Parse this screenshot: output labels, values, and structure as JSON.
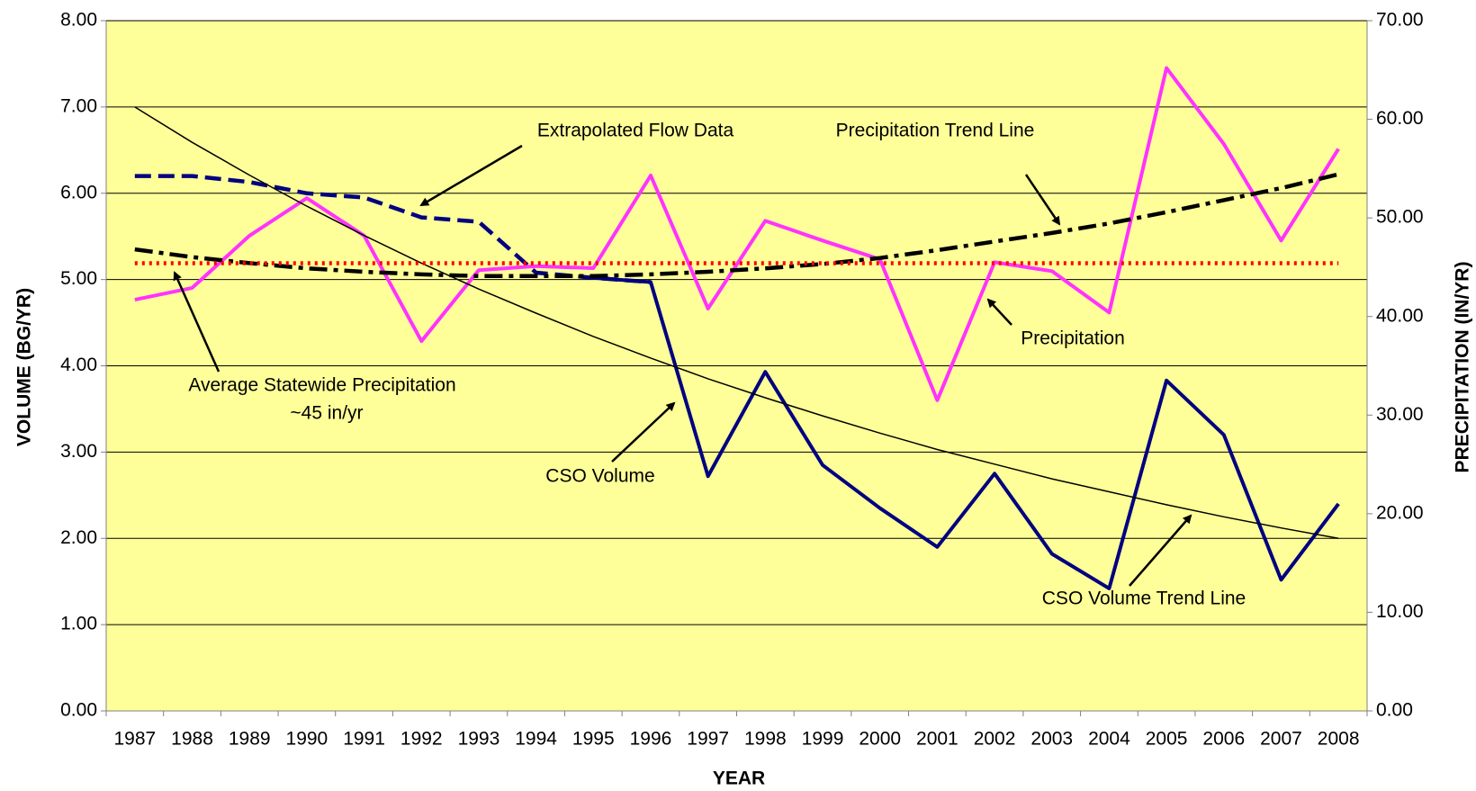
{
  "chart_data": {
    "type": "line",
    "x_label": "YEAR",
    "y_label": "VOLUME (BG/YR)",
    "y2_label": "PRECIPITATION (IN/YR)",
    "categories": [
      "1987",
      "1988",
      "1989",
      "1990",
      "1991",
      "1992",
      "1993",
      "1994",
      "1995",
      "1996",
      "1997",
      "1998",
      "1999",
      "2000",
      "2001",
      "2002",
      "2003",
      "2004",
      "2005",
      "2006",
      "2007",
      "2008"
    ],
    "ylim": [
      0,
      8
    ],
    "yticks": [
      {
        "value": 0,
        "label": "0.00"
      },
      {
        "value": 1,
        "label": "1.00"
      },
      {
        "value": 2,
        "label": "2.00"
      },
      {
        "value": 3,
        "label": "3.00"
      },
      {
        "value": 4,
        "label": "4.00"
      },
      {
        "value": 5,
        "label": "5.00"
      },
      {
        "value": 6,
        "label": "6.00"
      },
      {
        "value": 7,
        "label": "7.00"
      },
      {
        "value": 8,
        "label": "8.00"
      }
    ],
    "y2lim": [
      0,
      70
    ],
    "y2ticks": [
      {
        "value": 0,
        "label": "0.00"
      },
      {
        "value": 10,
        "label": "10.00"
      },
      {
        "value": 20,
        "label": "20.00"
      },
      {
        "value": 30,
        "label": "30.00"
      },
      {
        "value": 40,
        "label": "40.00"
      },
      {
        "value": 50,
        "label": "50.00"
      },
      {
        "value": 60,
        "label": "60.00"
      },
      {
        "value": 70,
        "label": "70.00"
      }
    ],
    "grid": true,
    "background": "#ffff99",
    "series": [
      {
        "color": "#000080",
        "line_style": "dashed",
        "values": [
          6.2,
          6.2,
          6.13,
          6.0,
          5.95,
          5.72,
          5.67,
          5.08,
          5.02,
          4.97,
          null,
          null,
          null,
          null,
          null,
          null,
          null,
          null,
          null,
          null,
          null,
          null
        ]
      },
      {
        "color": "#000080",
        "line_style": "solid",
        "values": [
          null,
          null,
          null,
          null,
          null,
          null,
          null,
          null,
          5.02,
          4.97,
          2.72,
          3.93,
          2.85,
          2.35,
          1.9,
          2.75,
          1.82,
          1.42,
          3.83,
          3.2,
          1.52,
          2.4
        ]
      },
      {
        "color": "#ff33ff",
        "line_style": "solid",
        "axis": "y2",
        "values": [
          41.7,
          42.9,
          48.2,
          52.0,
          48.2,
          37.5,
          44.7,
          45.1,
          44.9,
          54.3,
          40.8,
          49.7,
          47.7,
          45.8,
          31.5,
          45.5,
          44.6,
          40.4,
          65.2,
          57.5,
          47.7,
          57.0
        ]
      },
      {
        "color": "#000000",
        "line_style": "dash-dot",
        "values": [
          5.35,
          5.26,
          5.19,
          5.13,
          5.09,
          5.06,
          5.04,
          5.04,
          5.04,
          5.06,
          5.09,
          5.13,
          5.18,
          5.25,
          5.34,
          5.44,
          5.54,
          5.65,
          5.78,
          5.92,
          6.06,
          6.22
        ]
      },
      {
        "color": "#000000",
        "line_style": "thin",
        "values": [
          7.0,
          6.59,
          6.21,
          5.85,
          5.51,
          5.19,
          4.89,
          4.61,
          4.34,
          4.09,
          3.85,
          3.63,
          3.42,
          3.22,
          3.03,
          2.86,
          2.69,
          2.54,
          2.39,
          2.25,
          2.12,
          2.0
        ]
      },
      {
        "color": "#ff0000",
        "line_style": "dotted",
        "axis": "y2",
        "values": [
          45.4,
          45.4,
          45.4,
          45.4,
          45.4,
          45.4,
          45.4,
          45.4,
          45.4,
          45.4,
          45.4,
          45.4,
          45.4,
          45.4,
          45.4,
          45.4,
          45.4,
          45.4,
          45.4,
          45.4,
          45.4,
          45.4
        ]
      }
    ],
    "annotations": [
      "Extrapolated Flow Data",
      "Precipitation Trend Line",
      "Average Statewide Precipitation",
      "~45 in/yr",
      "Precipitation",
      "CSO Volume",
      "CSO Volume Trend Line"
    ]
  }
}
